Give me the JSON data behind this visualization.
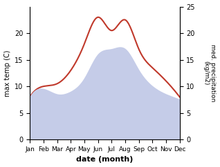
{
  "months": [
    "Jan",
    "Feb",
    "Mar",
    "Apr",
    "May",
    "Jun",
    "Jul",
    "Aug",
    "Sep",
    "Oct",
    "Nov",
    "Dec"
  ],
  "temp": [
    8.0,
    10.0,
    10.5,
    13.0,
    18.0,
    23.0,
    20.5,
    22.5,
    17.0,
    13.5,
    11.0,
    8.0
  ],
  "precip": [
    8.0,
    9.5,
    8.5,
    9.0,
    11.5,
    16.0,
    17.0,
    17.0,
    13.0,
    10.0,
    8.5,
    7.5
  ],
  "temp_color": "#c0392b",
  "precip_fill_color": "#c5cce8",
  "precip_line_color": "#9aa4cc",
  "ylabel_left": "max temp (C)",
  "ylabel_right": "med. precipitation\n(kg/m2)",
  "xlabel": "date (month)",
  "ylim_left": [
    0,
    25
  ],
  "ylim_right": [
    0,
    25
  ],
  "yticks_left": [
    0,
    5,
    10,
    15,
    20
  ],
  "yticks_right": [
    0,
    5,
    10,
    15,
    20,
    25
  ],
  "figsize": [
    3.18,
    2.42
  ],
  "dpi": 100
}
